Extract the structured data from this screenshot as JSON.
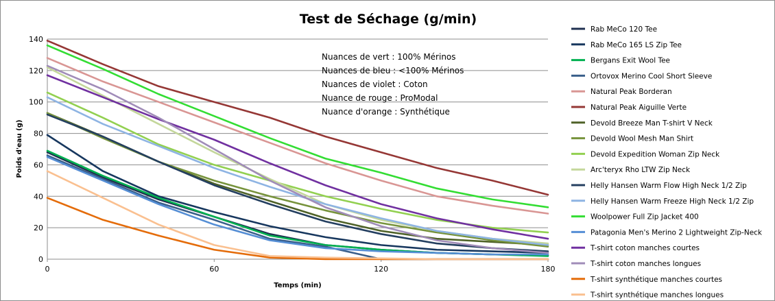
{
  "chart_data": {
    "type": "line",
    "title": "Test de Séchage (g/min)",
    "xlabel": "Temps (min)",
    "ylabel": "Poids d'eau (g)",
    "xlim": [
      0,
      180
    ],
    "ylim": [
      0,
      140
    ],
    "xticks": [
      0,
      60,
      120,
      180
    ],
    "yticks": [
      0,
      20,
      40,
      60,
      80,
      100,
      120,
      140
    ],
    "grid": "horizontal",
    "legend_position": "right",
    "annotation": [
      "Nuances de vert : 100% Mérinos",
      "Nuances de bleu : <100%  Mérinos",
      "Nuances de violet : Coton",
      "Nuance de rouge : ProModal",
      "Nuance d'orange : Synthétique"
    ],
    "x": [
      0,
      20,
      40,
      60,
      80,
      100,
      120,
      140,
      160,
      180
    ],
    "series": [
      {
        "name": "Rab MeCo 120 Tee",
        "color": "#1f3050",
        "values": [
          68,
          52,
          38,
          27,
          16,
          9,
          6,
          4,
          3,
          2.5
        ]
      },
      {
        "name": "Rab MeCo 165 LS Zip Tee",
        "color": "#17375e",
        "values": [
          79,
          56,
          40,
          30,
          21,
          14,
          9,
          6,
          5,
          4
        ]
      },
      {
        "name": "Bergans Exit Wool Tee",
        "color": "#00b050",
        "values": [
          69,
          53,
          39,
          27,
          15,
          9,
          6,
          4,
          3,
          2
        ]
      },
      {
        "name": "Ortovox Merino Cool Short Sleeve",
        "color": "#3a5f8a",
        "values": [
          66,
          51,
          36,
          25,
          13,
          8,
          0,
          0,
          0,
          0
        ]
      },
      {
        "name": "Natural Peak Borderan",
        "color": "#d99694",
        "values": [
          128,
          113,
          100,
          87,
          74,
          61,
          50,
          40,
          34,
          29
        ]
      },
      {
        "name": "Natural Peak Aiguille Verte",
        "color": "#953735",
        "values": [
          139,
          124,
          110,
          100,
          90,
          78,
          68,
          58,
          50,
          41
        ]
      },
      {
        "name": "Devold Breeze Man T-shirt V Neck",
        "color": "#4f6228",
        "values": [
          93,
          78,
          62,
          48,
          37,
          26,
          18,
          13,
          11,
          9
        ]
      },
      {
        "name": "Devold Wool Mesh Man Shirt",
        "color": "#77933c",
        "values": [
          93,
          77,
          62,
          50,
          40,
          31,
          23,
          17,
          12,
          8
        ]
      },
      {
        "name": "Devold Expedition Woman Zip Neck",
        "color": "#92d050",
        "values": [
          106,
          90,
          73,
          60,
          50,
          40,
          32,
          25,
          20,
          17
        ]
      },
      {
        "name": "Arc'teryx Rho LTW Zip Neck",
        "color": "#c4d79b",
        "values": [
          122,
          104,
          86,
          68,
          51,
          35,
          25,
          18,
          13,
          10
        ]
      },
      {
        "name": "Helly Hansen Warm Flow High Neck 1/2 Zip",
        "color": "#243f60",
        "values": [
          92,
          78,
          62,
          47,
          35,
          24,
          16,
          10,
          7,
          5
        ]
      },
      {
        "name": "Helly Hansen Warm Freeze High Neck 1/2 Zip",
        "color": "#8eb4e3",
        "values": [
          103,
          86,
          72,
          58,
          46,
          35,
          26,
          18,
          13,
          9
        ]
      },
      {
        "name": "Woolpower Full Zip Jacket 400",
        "color": "#33dd33",
        "values": [
          136,
          121,
          105,
          91,
          77,
          64,
          55,
          45,
          38,
          33
        ]
      },
      {
        "name": "Patagonia Men's Merino 2 Lightweight Zip-Neck",
        "color": "#558ed5",
        "values": [
          65,
          50,
          35,
          22,
          12,
          7,
          5,
          4,
          3,
          3
        ]
      },
      {
        "name": "T-shirt coton manches courtes",
        "color": "#7030a0",
        "values": [
          117,
          103,
          89,
          76,
          61,
          47,
          35,
          26,
          19,
          13
        ]
      },
      {
        "name": "T-shirt coton manches longues",
        "color": "#a08cb8",
        "values": [
          123,
          108,
          90,
          70,
          50,
          33,
          21,
          12,
          7,
          4
        ]
      },
      {
        "name": "T-shirt synthétique manches courtes",
        "color": "#e46c0a",
        "values": [
          39,
          25,
          15,
          6,
          1,
          0,
          0,
          0,
          0,
          0
        ]
      },
      {
        "name": "T-shirt synthétique manches longues",
        "color": "#fac090",
        "values": [
          56,
          39,
          22,
          9,
          2,
          1,
          0.5,
          0,
          0,
          0
        ]
      }
    ]
  }
}
